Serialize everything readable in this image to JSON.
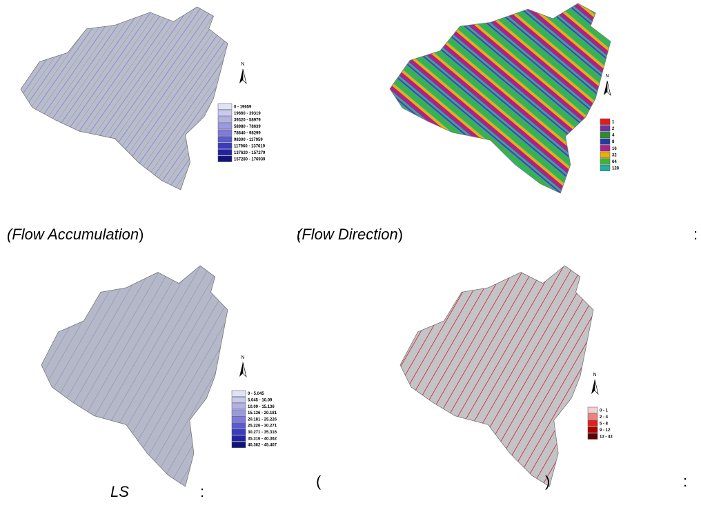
{
  "panels": [
    {
      "caption": {
        "italic": "(Flow Accumulation",
        "close": ")",
        "colon": ":"
      },
      "north": "N",
      "legend": [
        {
          "label": "0 - 19659",
          "color": "#e2e2f6"
        },
        {
          "label": "19660 - 39319",
          "color": "#cacaf0"
        },
        {
          "label": "39320 - 58979",
          "color": "#b2b2ea"
        },
        {
          "label": "58980 - 78639",
          "color": "#9a9ae4"
        },
        {
          "label": "78640 - 98299",
          "color": "#7c7cdc"
        },
        {
          "label": "98300 - 117959",
          "color": "#5a5ad2"
        },
        {
          "label": "117960 - 137619",
          "color": "#3a3ac4"
        },
        {
          "label": "137620 - 157279",
          "color": "#2222a8"
        },
        {
          "label": "157280 - 176939",
          "color": "#12127e"
        }
      ]
    },
    {
      "caption": {
        "italic": "(Flow Direction",
        "close": ")",
        "colon": ":"
      },
      "north": "N",
      "legend": [
        {
          "label": "1",
          "color": "#e31a1c"
        },
        {
          "label": "2",
          "color": "#7030a0"
        },
        {
          "label": "4",
          "color": "#2e8b2e"
        },
        {
          "label": "8",
          "color": "#1f3fa0"
        },
        {
          "label": "16",
          "color": "#b0208a"
        },
        {
          "label": "32",
          "color": "#e8b000"
        },
        {
          "label": "64",
          "color": "#3cb43c"
        },
        {
          "label": "128",
          "color": "#20b0a0"
        }
      ]
    },
    {
      "caption": {
        "italic": "LS",
        "colon": ":"
      },
      "north": "N",
      "legend": [
        {
          "label": "0 - 5.045",
          "color": "#e2e2f6"
        },
        {
          "label": "5.045 - 10.09",
          "color": "#cacaf0"
        },
        {
          "label": "10.09 - 15.136",
          "color": "#b2b2ea"
        },
        {
          "label": "15.136 - 20.181",
          "color": "#9a9ae4"
        },
        {
          "label": "20.181 - 25.226",
          "color": "#7c7cdc"
        },
        {
          "label": "25.226 - 30.271",
          "color": "#5a5ad2"
        },
        {
          "label": "30.271 - 35.316",
          "color": "#3a3ac4"
        },
        {
          "label": "35.316 - 40.362",
          "color": "#2222a8"
        },
        {
          "label": "40.362 - 45.407",
          "color": "#12127e"
        }
      ]
    },
    {
      "caption": {
        "open": "(",
        "close": ")",
        "colon": ":"
      },
      "north": "N",
      "legend": [
        {
          "label": "0 - 1",
          "color": "#f6d0d0"
        },
        {
          "label": "2 - 4",
          "color": "#f08080"
        },
        {
          "label": "5 - 8",
          "color": "#e02020"
        },
        {
          "label": "9 - 12",
          "color": "#b00000"
        },
        {
          "label": "13 - 43",
          "color": "#600000"
        }
      ]
    }
  ]
}
